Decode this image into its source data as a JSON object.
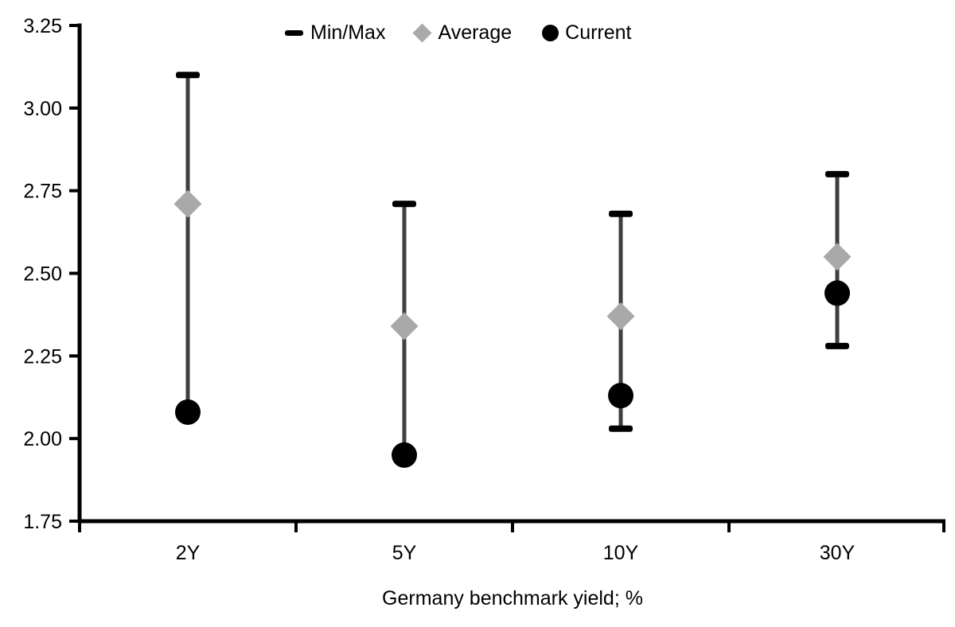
{
  "chart_data": {
    "type": "scatter",
    "subtype": "min-max-range-with-markers",
    "title": "",
    "xlabel": "Germany benchmark yield; %",
    "ylabel": "",
    "categories": [
      "2Y",
      "5Y",
      "10Y",
      "30Y"
    ],
    "ylim": [
      1.75,
      3.25
    ],
    "y_tick_step": 0.25,
    "y_ticks": [
      {
        "value": 3.25,
        "label": "3.25"
      },
      {
        "value": 3.0,
        "label": "3.00"
      },
      {
        "value": 2.75,
        "label": "2.75"
      },
      {
        "value": 2.5,
        "label": "2.50"
      },
      {
        "value": 2.25,
        "label": "2.25"
      },
      {
        "value": 2.0,
        "label": "2.00"
      },
      {
        "value": 1.75,
        "label": "1.75"
      }
    ],
    "series": [
      {
        "name": "Min/Max",
        "type": "range",
        "min": [
          2.08,
          1.95,
          2.03,
          2.28
        ],
        "max": [
          3.1,
          2.71,
          2.68,
          2.8
        ],
        "min_cap_visible": [
          false,
          false,
          true,
          true
        ],
        "max_cap_visible": [
          true,
          true,
          true,
          true
        ]
      },
      {
        "name": "Average",
        "type": "point",
        "marker": "diamond",
        "values": [
          2.71,
          2.34,
          2.37,
          2.55
        ]
      },
      {
        "name": "Current",
        "type": "point",
        "marker": "circle",
        "values": [
          2.08,
          1.95,
          2.13,
          2.44
        ]
      }
    ],
    "colors": {
      "range_line": "#3F3F3F",
      "cap": "#000000",
      "average": "#A9A9A9",
      "current": "#000000",
      "axis": "#000000",
      "text": "#000000"
    },
    "legend_position": "top-center",
    "grid": false
  }
}
